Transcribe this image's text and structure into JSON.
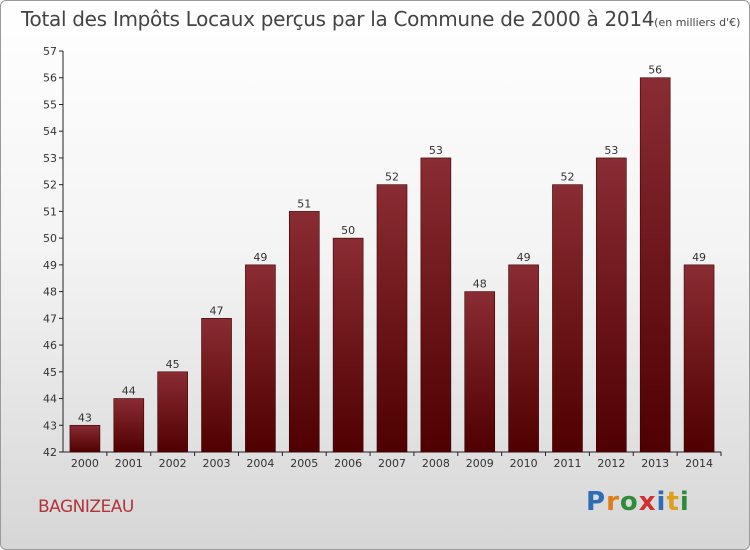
{
  "colors": {
    "bar_top": "#8a2c33",
    "bar_bottom": "#4f0000",
    "bar_stroke": "#3a0000",
    "axis": "#222222",
    "commune": "#b2343a"
  },
  "chart_data": {
    "type": "bar",
    "title": "Total des Impôts Locaux perçus par la Commune de 2000 à 2014",
    "title_unit": "(en milliers d'€)",
    "categories": [
      "2000",
      "2001",
      "2002",
      "2003",
      "2004",
      "2005",
      "2006",
      "2007",
      "2008",
      "2009",
      "2010",
      "2011",
      "2012",
      "2013",
      "2014"
    ],
    "values": [
      43,
      44,
      45,
      47,
      49,
      51,
      50,
      52,
      53,
      48,
      49,
      52,
      53,
      56,
      49
    ],
    "data_labels": [
      "43",
      "44",
      "45",
      "47",
      "49",
      "51",
      "50",
      "52",
      "53",
      "48",
      "49",
      "52",
      "53",
      "56",
      "49"
    ],
    "ylim": [
      42,
      57
    ],
    "yticks": [
      "42",
      "43",
      "44",
      "45",
      "46",
      "47",
      "48",
      "49",
      "50",
      "51",
      "52",
      "53",
      "54",
      "55",
      "56",
      "57"
    ],
    "xlabel": "",
    "ylabel": "",
    "grid": false,
    "legend": "none"
  },
  "footer": {
    "commune": "BAGNIZEAU",
    "brand": "Proxiti",
    "brand_letters": [
      {
        "char": "P",
        "color": "#2e6db4"
      },
      {
        "char": "r",
        "color": "#e07b1a"
      },
      {
        "char": "o",
        "color": "#2e8b3a"
      },
      {
        "char": "x",
        "color": "#d03030"
      },
      {
        "char": "i",
        "color": "#2e6db4"
      },
      {
        "char": "t",
        "color": "#e0a01a"
      },
      {
        "char": "i",
        "color": "#2e8b3a"
      }
    ]
  }
}
